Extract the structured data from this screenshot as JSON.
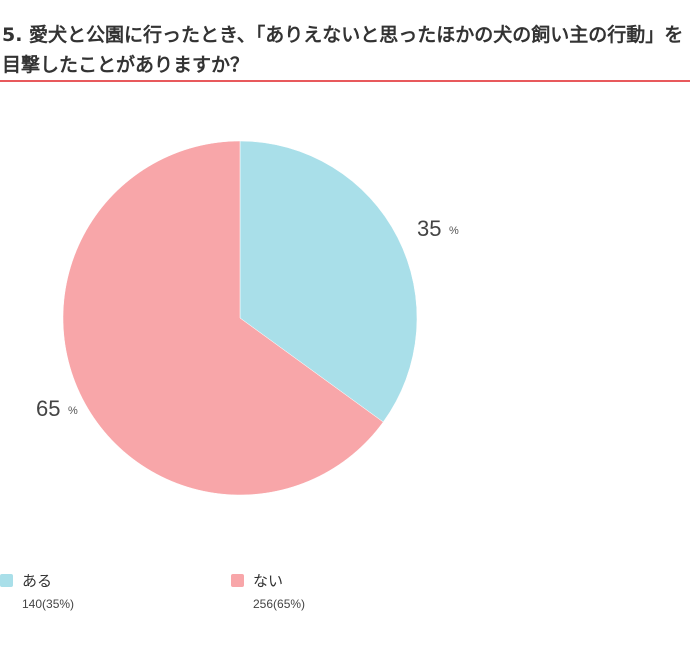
{
  "question": {
    "title": "5. 愛犬と公園に行ったとき、「ありえないと思ったほかの犬の飼い主の行動」を目撃したことがありますか？"
  },
  "chart_data": {
    "type": "pie",
    "title": "5. 愛犬と公園に行ったとき、「ありえないと思ったほかの犬の飼い主の行動」を目撃したことがありますか？",
    "slices": [
      {
        "label": "ある",
        "count": 140,
        "percent": 35,
        "color": "#a9dfe9",
        "percent_label": "35",
        "detail": "140(35%)"
      },
      {
        "label": "ない",
        "count": 256,
        "percent": 65,
        "color": "#f8a6a9",
        "percent_label": "65",
        "detail": "256(65%)"
      }
    ],
    "unit": "%",
    "start": "top",
    "direction": "clockwise",
    "legend_position": "bottom"
  }
}
